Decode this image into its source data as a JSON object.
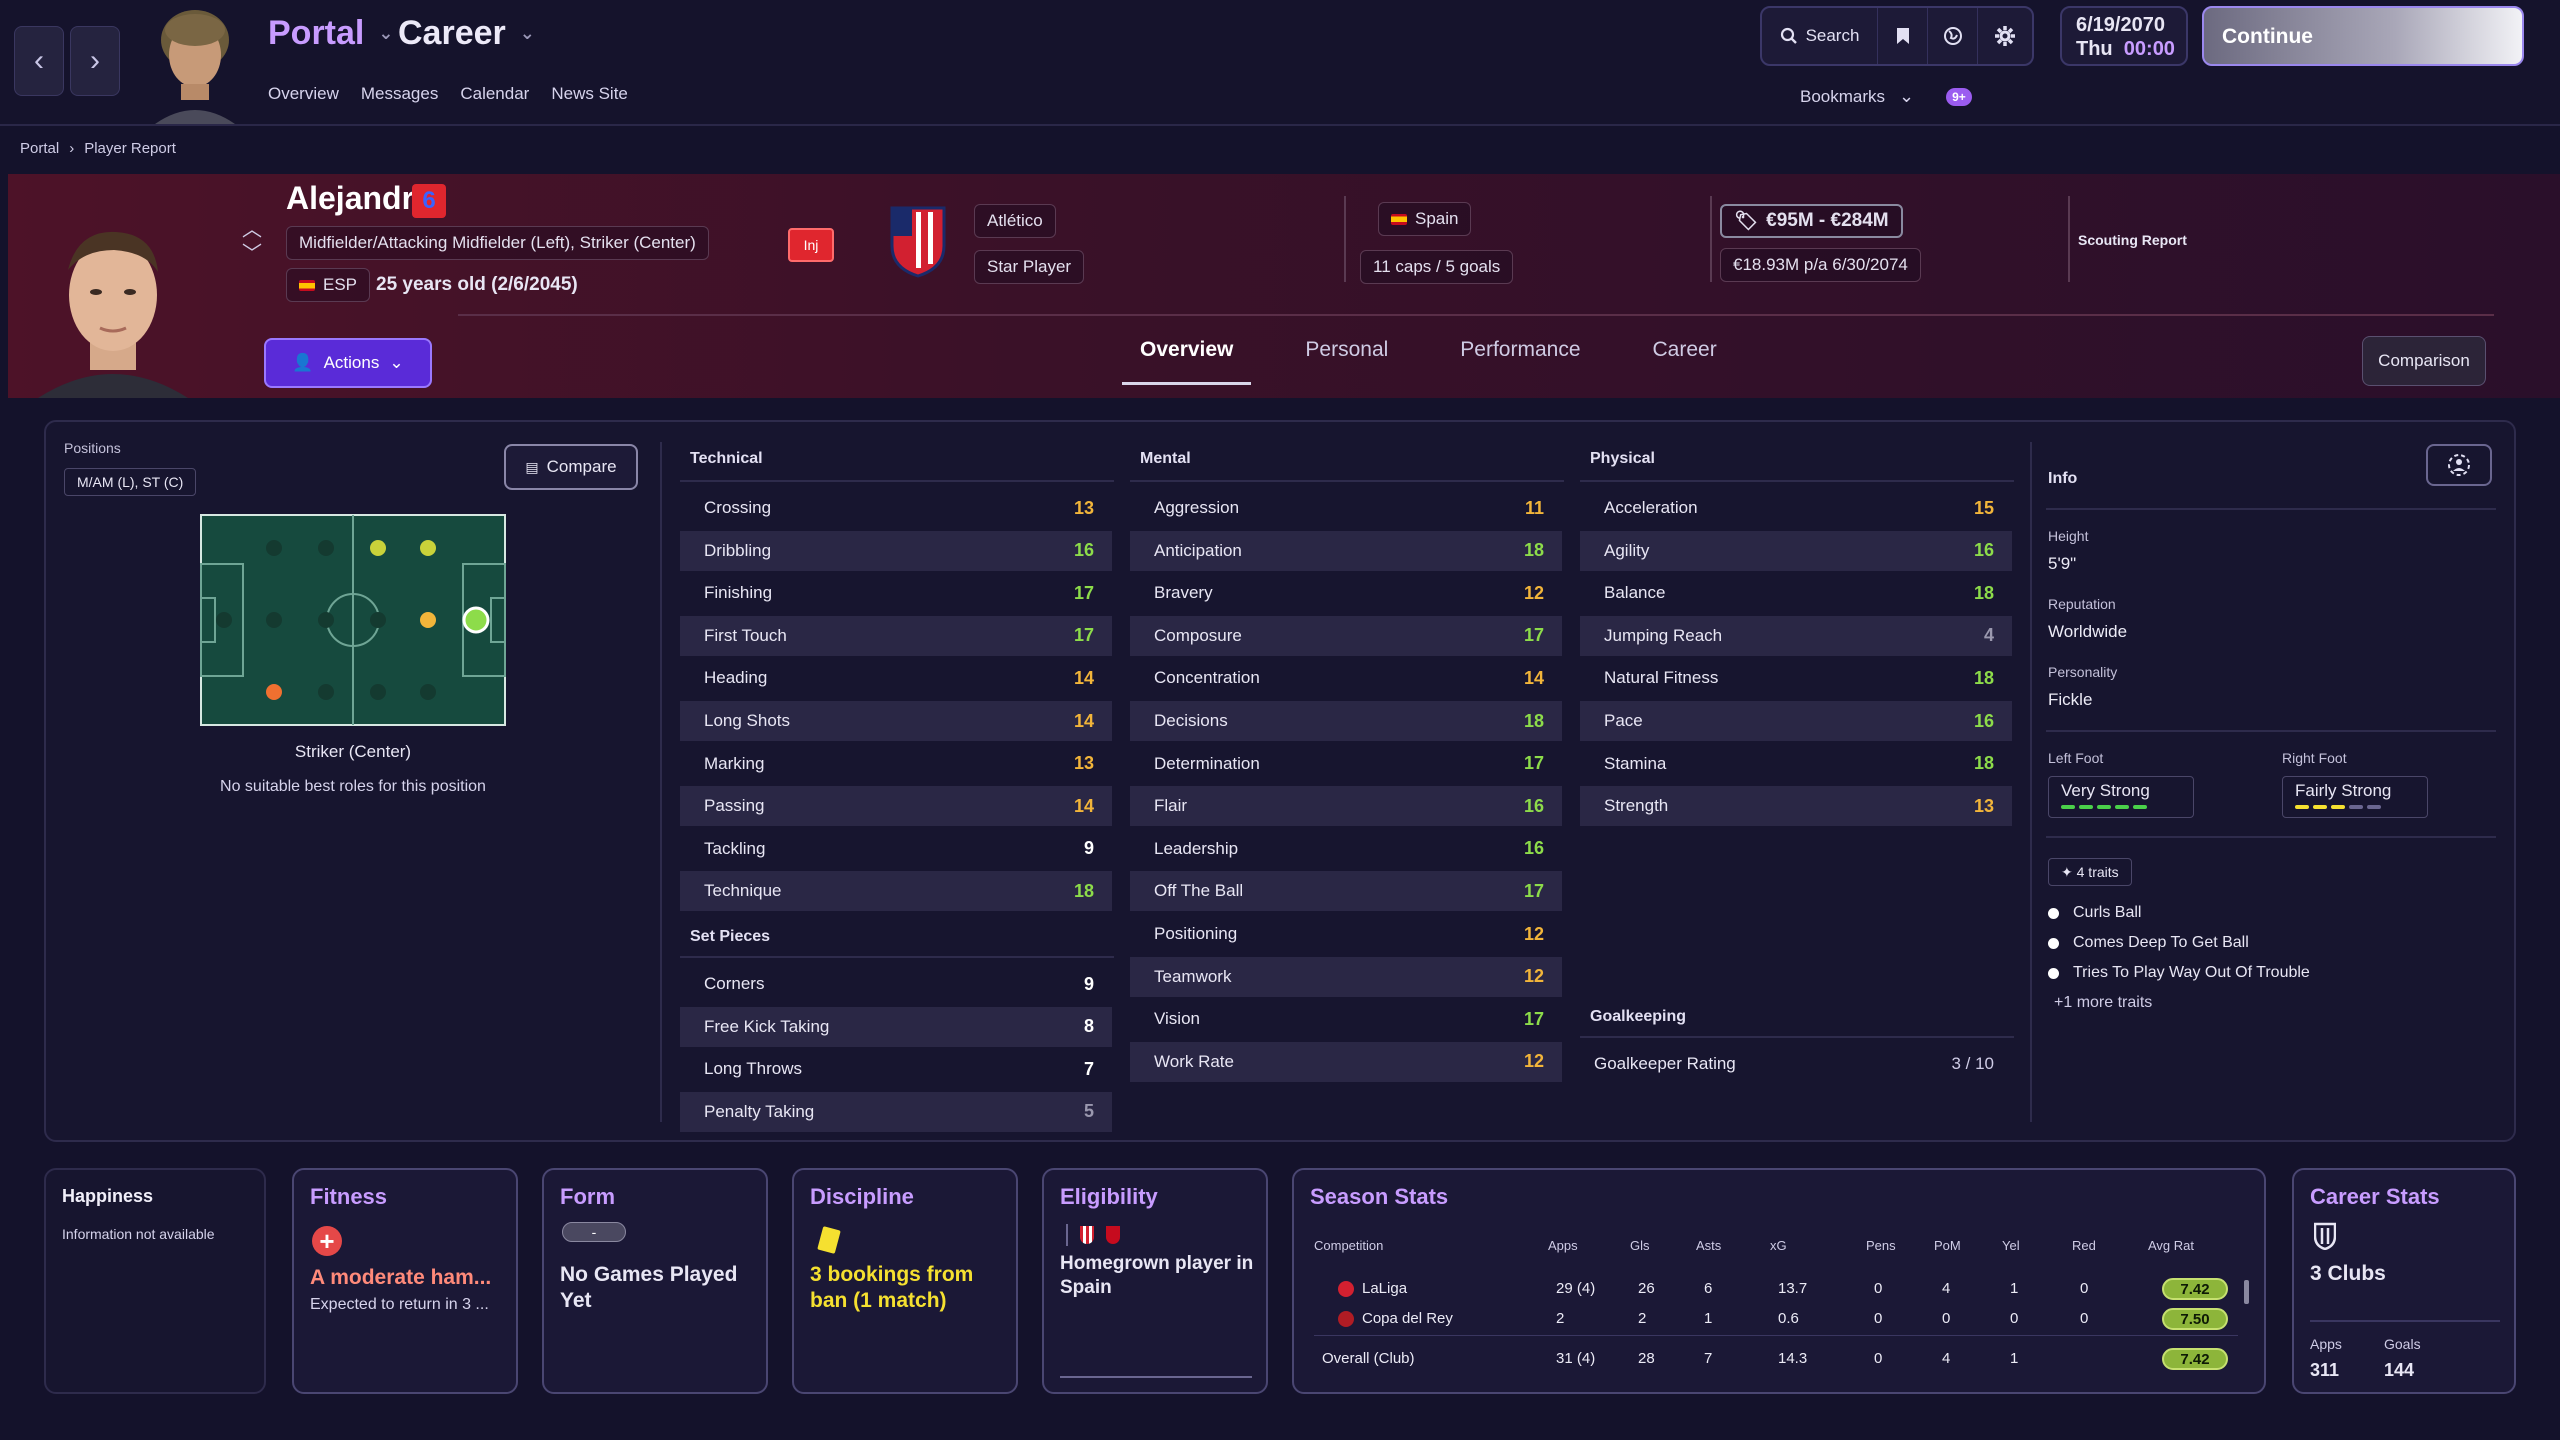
{
  "topbar": {
    "portal_label": "Portal",
    "career_label": "Career",
    "subnav": [
      "Overview",
      "Messages",
      "Calendar",
      "News Site"
    ],
    "search_label": "Search",
    "date": "6/19/2070",
    "day": "Thu",
    "time": "00:00",
    "continue_label": "Continue",
    "bookmarks_label": "Bookmarks",
    "notif_count": "9+"
  },
  "breadcrumb": [
    "Portal",
    "Player Report"
  ],
  "player": {
    "name": "Alejandro",
    "number": "6",
    "positions": "Midfielder/Attacking Midfielder (Left), Striker (Center)",
    "nation_code": "ESP",
    "age": "25 years old (2/6/2045)",
    "injury_label": "Inj",
    "club": "Atlético",
    "status": "Star Player",
    "nation": "Spain",
    "caps": "11 caps / 5 goals",
    "value": "€95M - €284M",
    "wage": "€18.93M p/a 6/30/2074",
    "scouting_label": "Scouting Report",
    "actions_label": "Actions",
    "comparison_label": "Comparison"
  },
  "tabs": [
    {
      "label": "Overview",
      "active": true
    },
    {
      "label": "Personal",
      "active": false
    },
    {
      "label": "Performance",
      "active": false
    },
    {
      "label": "Career",
      "active": false
    }
  ],
  "positions_panel": {
    "title": "Positions",
    "short": "M/AM (L), ST (C)",
    "compare_label": "Compare",
    "selected_position": "Striker (Center)",
    "roles_note": "No suitable best roles for this position"
  },
  "technical": {
    "title": "Technical",
    "items": [
      {
        "name": "Crossing",
        "value": 13,
        "color": "#f2b53a"
      },
      {
        "name": "Dribbling",
        "value": 16,
        "color": "#8ddc4a"
      },
      {
        "name": "Finishing",
        "value": 17,
        "color": "#8ddc4a"
      },
      {
        "name": "First Touch",
        "value": 17,
        "color": "#8ddc4a"
      },
      {
        "name": "Heading",
        "value": 14,
        "color": "#f2b53a"
      },
      {
        "name": "Long Shots",
        "value": 14,
        "color": "#f2b53a"
      },
      {
        "name": "Marking",
        "value": 13,
        "color": "#f2b53a"
      },
      {
        "name": "Passing",
        "value": 14,
        "color": "#f2b53a"
      },
      {
        "name": "Tackling",
        "value": 9,
        "color": "#ffffff"
      },
      {
        "name": "Technique",
        "value": 18,
        "color": "#8ddc4a"
      }
    ]
  },
  "set_pieces": {
    "title": "Set Pieces",
    "items": [
      {
        "name": "Corners",
        "value": 9,
        "color": "#ffffff"
      },
      {
        "name": "Free Kick Taking",
        "value": 8,
        "color": "#ffffff"
      },
      {
        "name": "Long Throws",
        "value": 7,
        "color": "#ffffff"
      },
      {
        "name": "Penalty Taking",
        "value": 5,
        "color": "#9a98ae"
      }
    ]
  },
  "mental": {
    "title": "Mental",
    "items": [
      {
        "name": "Aggression",
        "value": 11,
        "color": "#f2b53a"
      },
      {
        "name": "Anticipation",
        "value": 18,
        "color": "#8ddc4a"
      },
      {
        "name": "Bravery",
        "value": 12,
        "color": "#f2b53a"
      },
      {
        "name": "Composure",
        "value": 17,
        "color": "#8ddc4a"
      },
      {
        "name": "Concentration",
        "value": 14,
        "color": "#f2b53a"
      },
      {
        "name": "Decisions",
        "value": 18,
        "color": "#8ddc4a"
      },
      {
        "name": "Determination",
        "value": 17,
        "color": "#8ddc4a"
      },
      {
        "name": "Flair",
        "value": 16,
        "color": "#8ddc4a"
      },
      {
        "name": "Leadership",
        "value": 16,
        "color": "#8ddc4a"
      },
      {
        "name": "Off The Ball",
        "value": 17,
        "color": "#8ddc4a"
      },
      {
        "name": "Positioning",
        "value": 12,
        "color": "#f2b53a"
      },
      {
        "name": "Teamwork",
        "value": 12,
        "color": "#f2b53a"
      },
      {
        "name": "Vision",
        "value": 17,
        "color": "#8ddc4a"
      },
      {
        "name": "Work Rate",
        "value": 12,
        "color": "#f2b53a"
      }
    ]
  },
  "physical": {
    "title": "Physical",
    "items": [
      {
        "name": "Acceleration",
        "value": 15,
        "color": "#f2b53a"
      },
      {
        "name": "Agility",
        "value": 16,
        "color": "#8ddc4a"
      },
      {
        "name": "Balance",
        "value": 18,
        "color": "#8ddc4a"
      },
      {
        "name": "Jumping Reach",
        "value": 4,
        "color": "#9a98ae"
      },
      {
        "name": "Natural Fitness",
        "value": 18,
        "color": "#8ddc4a"
      },
      {
        "name": "Pace",
        "value": 16,
        "color": "#8ddc4a"
      },
      {
        "name": "Stamina",
        "value": 18,
        "color": "#8ddc4a"
      },
      {
        "name": "Strength",
        "value": 13,
        "color": "#f2b53a"
      }
    ]
  },
  "goalkeeping": {
    "title": "Goalkeeping",
    "rating_label": "Goalkeeper Rating",
    "rating_value": "3 / 10"
  },
  "info": {
    "title": "Info",
    "height_label": "Height",
    "height": "5'9\"",
    "reputation_label": "Reputation",
    "reputation": "Worldwide",
    "personality_label": "Personality",
    "personality": "Fickle",
    "left_foot_label": "Left Foot",
    "left_foot": "Very Strong",
    "left_foot_level": 5,
    "right_foot_label": "Right Foot",
    "right_foot": "Fairly Strong",
    "right_foot_level": 3,
    "traits_count": "4 traits",
    "traits": [
      "Curls Ball",
      "Comes Deep To Get Ball",
      "Tries To Play Way Out Of Trouble"
    ],
    "more_traits": "+1 more traits"
  },
  "cards": {
    "happiness_title": "Happiness",
    "happiness_text": "Information not available",
    "fitness_title": "Fitness",
    "fitness_text": "A moderate ham...",
    "fitness_sub": "Expected to return in 3 ...",
    "form_title": "Form",
    "form_pill": "-",
    "form_text": "No Games Played Yet",
    "discipline_title": "Discipline",
    "discipline_text": "3 bookings from ban (1 match)",
    "eligibility_title": "Eligibility",
    "eligibility_text": "Homegrown player in Spain",
    "season_title": "Season Stats",
    "career_title": "Career Stats",
    "career_clubs": "3 Clubs",
    "career_apps_label": "Apps",
    "career_apps": "311",
    "career_goals_label": "Goals",
    "career_goals": "144"
  },
  "season_stats": {
    "headers": [
      "Competition",
      "Apps",
      "Gls",
      "Asts",
      "xG",
      "Pens",
      "PoM",
      "Yel",
      "Red",
      "Avg Rat"
    ],
    "rows": [
      [
        "LaLiga",
        "29 (4)",
        "26",
        "6",
        "13.7",
        "0",
        "4",
        "1",
        "0",
        "7.42"
      ],
      [
        "Copa del Rey",
        "2",
        "2",
        "1",
        "0.6",
        "0",
        "0",
        "0",
        "0",
        "7.50"
      ],
      [
        "Overall (Club)",
        "31 (4)",
        "28",
        "7",
        "14.3",
        "0",
        "4",
        "1",
        "",
        "7.42"
      ]
    ]
  }
}
